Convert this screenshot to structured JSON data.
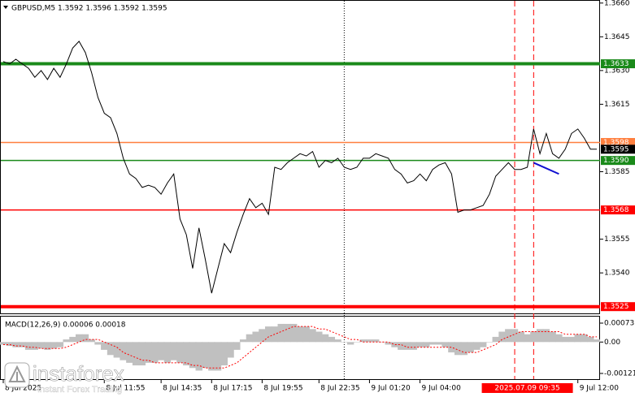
{
  "chart_data": [
    {
      "type": "line",
      "title": "GBPUSD,M5  1.3592 1.3596 1.3592 1.3595",
      "series": [
        {
          "color": "#000000",
          "values": [
            1.3634,
            1.3633,
            1.3635,
            1.3633,
            1.3631,
            1.3627,
            1.363,
            1.3626,
            1.3631,
            1.3627,
            1.3633,
            1.364,
            1.3643,
            1.3638,
            1.3629,
            1.3618,
            1.3611,
            1.3609,
            1.3602,
            1.3591,
            1.3584,
            1.3582,
            1.3578,
            1.3579,
            1.3578,
            1.3575,
            1.358,
            1.3584,
            1.3564,
            1.3557,
            1.3542,
            1.356,
            1.3546,
            1.3531,
            1.3542,
            1.3553,
            1.3549,
            1.3558,
            1.3566,
            1.3573,
            1.3569,
            1.3571,
            1.3566,
            1.3587,
            1.3586,
            1.3589,
            1.3591,
            1.3593,
            1.3592,
            1.3594,
            1.3587,
            1.359,
            1.3589,
            1.3591,
            1.3587,
            1.3586,
            1.3587,
            1.3591,
            1.3591,
            1.3593,
            1.3592,
            1.3591,
            1.3586,
            1.3584,
            1.358,
            1.3581,
            1.3584,
            1.3581,
            1.3586,
            1.3588,
            1.3589,
            1.3584,
            1.3567,
            1.3568,
            1.3568,
            1.3569,
            1.357,
            1.3575,
            1.3583,
            1.3586,
            1.3589,
            1.3586,
            1.3586,
            1.3587,
            1.3604,
            1.3593,
            1.3602,
            1.3593,
            1.3591,
            1.3595,
            1.3602,
            1.3604,
            1.36,
            1.3595,
            1.3595
          ]
        }
      ],
      "ylim": [
        1.3522,
        1.3661
      ],
      "yticks": [
        {
          "value": 1.366,
          "label": "1.3660"
        },
        1.3645,
        {
          "value": 1.363,
          "label": "1.3630"
        },
        1.3615,
        1.3585,
        1.3555,
        {
          "value": 1.354,
          "label": "1.3540"
        }
      ],
      "xticks": [
        {
          "value": 0,
          "label": "8 Jul 2025"
        },
        {
          "value": 16,
          "label": "8 Jul 11:55"
        },
        {
          "value": 25,
          "label": "8 Jul 14:35"
        },
        {
          "value": 33,
          "label": "8 Jul 17:15"
        },
        {
          "value": 41,
          "label": "8 Jul 19:55"
        },
        {
          "value": 50,
          "label": "8 Jul 22:35"
        },
        {
          "value": 58,
          "label": "9 Jul 01:20"
        },
        {
          "value": 66,
          "label": "9 Jul 04:00"
        },
        {
          "value": 91,
          "label": "9 Jul 12:00"
        }
      ],
      "levels": [
        {
          "value": 1.3633,
          "color": "#1a8a1a",
          "thick": true
        },
        {
          "value": 1.3598,
          "label": "1.3598",
          "color": "#ff7f3f",
          "thick": false
        },
        {
          "value": 1.359,
          "label": "1.3590",
          "color": "#1a8a1a",
          "thick": false
        },
        {
          "value": 1.3568,
          "color": "#ff0000",
          "thick": false
        },
        {
          "value": 1.3525,
          "color": "#ff0000",
          "thick": true
        }
      ],
      "last_price": {
        "value": 1.3595,
        "color": "#000000"
      },
      "trendline": {
        "color": "#1010d0",
        "x": [
          84,
          88
        ],
        "values": [
          1.3589,
          1.3584
        ]
      },
      "vlines": [
        {
          "value": 54,
          "color": "#000000",
          "style": "dotted"
        },
        {
          "value": 81,
          "color": "#ff0000",
          "style": "dashed"
        },
        {
          "value": 84,
          "color": "#ff0000",
          "style": "dashed"
        }
      ],
      "crosshair_label": {
        "value": 83,
        "label": "2025.07.09 09:35",
        "color": "#ff0000"
      }
    },
    {
      "type": "macd",
      "title": "MACD(12,26,9) 0.00006 0.00018",
      "series": [
        {
          "type": "bar",
          "color": "#c0c0c0",
          "values": [
            -0.0001,
            -0.00015,
            -0.0002,
            -0.0002,
            -0.0003,
            -0.0003,
            -0.00025,
            -0.0003,
            -0.00025,
            -0.0002,
            0.0001,
            0.0002,
            0.0003,
            0.0003,
            0.0001,
            -0.0001,
            -0.0003,
            -0.0005,
            -0.0006,
            -0.0007,
            -0.0008,
            -0.0009,
            -0.0009,
            -0.0008,
            -0.0008,
            -0.0007,
            -0.0008,
            -0.0007,
            -0.0008,
            -0.0009,
            -0.001,
            -0.0011,
            -0.001,
            -0.0011,
            -0.0011,
            -0.0009,
            -0.0006,
            -0.0003,
            0.0001,
            0.0003,
            0.0004,
            0.0005,
            0.0006,
            0.0006,
            0.0007,
            0.0007,
            0.0007,
            0.0006,
            0.0006,
            0.0005,
            0.0004,
            0.0003,
            0.0002,
            0.0001,
            0,
            -0.0001,
            0,
            0.0001,
            0.0001,
            0.0001,
            0,
            -0.0001,
            -0.0002,
            -0.0003,
            -0.0003,
            -0.0003,
            -0.0002,
            -0.0002,
            -0.0001,
            -0.0001,
            -0.0002,
            -0.0004,
            -0.0005,
            -0.0005,
            -0.0004,
            -0.0003,
            -0.0002,
            0,
            0.0002,
            0.0004,
            0.0005,
            0.0005,
            0.0004,
            0.0003,
            0.0004,
            0.0005,
            0.0005,
            0.0004,
            0.0003,
            0.0002,
            0.0002,
            0.0003,
            0.0003,
            0.0002,
            0.0001
          ]
        },
        {
          "type": "line",
          "color": "#ff0000",
          "values": [
            -0.0001,
            -0.0001,
            -0.00015,
            -0.00015,
            -0.0002,
            -0.0002,
            -0.00025,
            -0.00025,
            -0.00025,
            -0.00025,
            -0.0002,
            -0.0001,
            0,
            0.0001,
            0.0001,
            0.0001,
            0,
            -0.0001,
            -0.0002,
            -0.0004,
            -0.0005,
            -0.0006,
            -0.0007,
            -0.0007,
            -0.0008,
            -0.0008,
            -0.0008,
            -0.0008,
            -0.0008,
            -0.0008,
            -0.0009,
            -0.0009,
            -0.001,
            -0.001,
            -0.001,
            -0.001,
            -0.0009,
            -0.0008,
            -0.0006,
            -0.0004,
            -0.0002,
            0,
            0.0002,
            0.0003,
            0.0004,
            0.0005,
            0.0006,
            0.0006,
            0.0006,
            0.0006,
            0.0005,
            0.0005,
            0.0004,
            0.0003,
            0.0002,
            0.0001,
            0.0001,
            0,
            0,
            0,
            0,
            0,
            -0.0001,
            -0.0001,
            -0.0002,
            -0.0002,
            -0.0002,
            -0.0002,
            -0.0002,
            -0.0002,
            -0.0002,
            -0.0002,
            -0.0003,
            -0.0004,
            -0.0004,
            -0.0004,
            -0.0003,
            -0.0002,
            -0.0001,
            0.0001,
            0.0002,
            0.0003,
            0.0004,
            0.0004,
            0.0004,
            0.0004,
            0.0004,
            0.0004,
            0.0004,
            0.0003,
            0.0003,
            0.0003,
            0.0003,
            0.0002,
            0.0002
          ]
        }
      ],
      "ylim": [
        -0.00143,
        0.00098
      ],
      "yticks": [
        0.00073,
        {
          "value": 0,
          "label": "0.00"
        },
        -0.00121
      ]
    }
  ],
  "logo": {
    "name": "instaforex",
    "tagline": "Instant Forex Trading"
  }
}
